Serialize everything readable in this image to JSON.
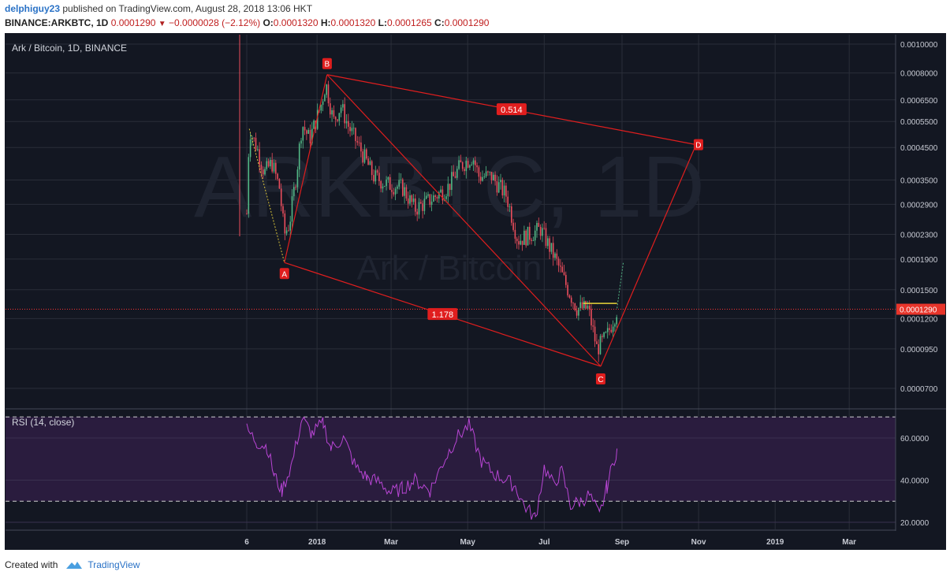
{
  "header": {
    "author": "delphiguy23",
    "published_text": "published on TradingView.com, August 28, 2018 13:06 HKT",
    "symbol": "BINANCE:ARKBTC, 1D",
    "last_price": "0.0001290",
    "change_arrow": "▼",
    "change": "−0.0000028 (−2.12%)",
    "open_label": "O:",
    "open": "0.0001320",
    "high_label": "H:",
    "high": "0.0001320",
    "low_label": "L:",
    "low": "0.0001265",
    "close_label": "C:",
    "close": "0.0001290"
  },
  "footer": {
    "created_with": "Created with",
    "brand": "TradingView"
  },
  "colors": {
    "background": "#131722",
    "pattern_red": "#e01e1e",
    "candle_up": "#53b987",
    "candle_down": "#eb4d5c",
    "rsi_line": "#b845d4",
    "rsi_band": "#2a1c3e",
    "price_line": "#ff3333"
  },
  "chart_data": [
    {
      "type": "candlestick",
      "title": "Ark / Bitcoin, 1D, BINANCE",
      "watermark": "ARKBTC, 1D",
      "watermark_sub": "Ark / Bitcoin",
      "scale": "log",
      "y_ticks": [
        "0.0010000",
        "0.0008000",
        "0.0006500",
        "0.0005500",
        "0.0004500",
        "0.0003500",
        "0.0002900",
        "0.0002300",
        "0.0001900",
        "0.0001500",
        "0.0001200",
        "0.0000950",
        "0.0000700"
      ],
      "x_ticks": [
        "6",
        "2018",
        "Mar",
        "May",
        "Jul",
        "Sep",
        "Nov",
        "2019",
        "Mar"
      ],
      "current_price_label": "0.0001290",
      "price_path": [
        {
          "date": "2017-11-06",
          "value": 0.00027
        },
        {
          "date": "2017-11-08",
          "value": 0.00052
        },
        {
          "date": "2017-11-14",
          "value": 0.00045
        },
        {
          "date": "2017-11-20",
          "value": 0.00037
        },
        {
          "date": "2017-11-26",
          "value": 0.0004
        },
        {
          "date": "2017-12-02",
          "value": 0.00033
        },
        {
          "date": "2017-12-06",
          "value": 0.00023
        },
        {
          "date": "2017-12-10",
          "value": 0.00025
        },
        {
          "date": "2017-12-16",
          "value": 0.00038
        },
        {
          "date": "2017-12-20",
          "value": 0.00054
        },
        {
          "date": "2017-12-26",
          "value": 0.00048
        },
        {
          "date": "2018-01-04",
          "value": 0.00062
        },
        {
          "date": "2018-01-08",
          "value": 0.00074
        },
        {
          "date": "2018-01-14",
          "value": 0.00055
        },
        {
          "date": "2018-01-20",
          "value": 0.00062
        },
        {
          "date": "2018-01-26",
          "value": 0.00053
        },
        {
          "date": "2018-02-05",
          "value": 0.00044
        },
        {
          "date": "2018-02-15",
          "value": 0.00036
        },
        {
          "date": "2018-02-25",
          "value": 0.00034
        },
        {
          "date": "2018-03-10",
          "value": 0.00033
        },
        {
          "date": "2018-03-20",
          "value": 0.00028
        },
        {
          "date": "2018-04-01",
          "value": 0.0003
        },
        {
          "date": "2018-04-15",
          "value": 0.00033
        },
        {
          "date": "2018-04-25",
          "value": 0.00039
        },
        {
          "date": "2018-05-05",
          "value": 0.00042
        },
        {
          "date": "2018-05-10",
          "value": 0.00036
        },
        {
          "date": "2018-05-20",
          "value": 0.00036
        },
        {
          "date": "2018-06-01",
          "value": 0.00031
        },
        {
          "date": "2018-06-10",
          "value": 0.00022
        },
        {
          "date": "2018-06-20",
          "value": 0.00023
        },
        {
          "date": "2018-06-28",
          "value": 0.00024
        },
        {
          "date": "2018-07-10",
          "value": 0.00019
        },
        {
          "date": "2018-07-20",
          "value": 0.00015
        },
        {
          "date": "2018-07-27",
          "value": 0.00013
        },
        {
          "date": "2018-08-05",
          "value": 0.00013
        },
        {
          "date": "2018-08-12",
          "value": 9.5e-05
        },
        {
          "date": "2018-08-20",
          "value": 0.000105
        },
        {
          "date": "2018-08-28",
          "value": 0.000129
        }
      ],
      "pattern": {
        "points": [
          {
            "label": "A",
            "date": "2017-12-06",
            "value": 0.000185
          },
          {
            "label": "B",
            "date": "2018-01-09",
            "value": 0.00079
          },
          {
            "label": "C",
            "date": "2018-08-15",
            "value": 8.3e-05
          },
          {
            "label": "D",
            "date": "2018-10-30",
            "value": 0.00046
          }
        ],
        "ratios": [
          {
            "label": "0.514",
            "between": "B-D"
          },
          {
            "label": "1.178",
            "between": "A-C"
          }
        ]
      },
      "projection": [
        {
          "date": "2018-08-28",
          "value": 0.00013
        },
        {
          "date": "2018-09-02",
          "value": 0.000185
        }
      ],
      "resistance_line": {
        "from": "2018-08-01",
        "to": "2018-08-28",
        "value": 0.000135
      }
    },
    {
      "type": "line",
      "title": "RSI (14, close)",
      "y_ticks": [
        "60.0000",
        "40.0000",
        "20.0000"
      ],
      "bands": [
        70,
        30
      ],
      "series": [
        {
          "points": [
            {
              "date": "2017-11-06",
              "value": 64
            },
            {
              "date": "2017-11-14",
              "value": 58
            },
            {
              "date": "2017-11-22",
              "value": 56
            },
            {
              "date": "2017-11-28",
              "value": 42
            },
            {
              "date": "2017-12-04",
              "value": 35
            },
            {
              "date": "2017-12-12",
              "value": 48
            },
            {
              "date": "2017-12-20",
              "value": 69
            },
            {
              "date": "2017-12-28",
              "value": 62
            },
            {
              "date": "2018-01-06",
              "value": 67
            },
            {
              "date": "2018-01-12",
              "value": 55
            },
            {
              "date": "2018-01-22",
              "value": 60
            },
            {
              "date": "2018-02-01",
              "value": 46
            },
            {
              "date": "2018-02-10",
              "value": 41
            },
            {
              "date": "2018-02-20",
              "value": 39
            },
            {
              "date": "2018-03-01",
              "value": 34
            },
            {
              "date": "2018-03-10",
              "value": 36
            },
            {
              "date": "2018-03-20",
              "value": 40
            },
            {
              "date": "2018-04-01",
              "value": 35
            },
            {
              "date": "2018-04-12",
              "value": 49
            },
            {
              "date": "2018-04-22",
              "value": 60
            },
            {
              "date": "2018-05-02",
              "value": 66
            },
            {
              "date": "2018-05-12",
              "value": 49
            },
            {
              "date": "2018-05-22",
              "value": 43
            },
            {
              "date": "2018-06-01",
              "value": 40
            },
            {
              "date": "2018-06-08",
              "value": 37
            },
            {
              "date": "2018-06-15",
              "value": 28
            },
            {
              "date": "2018-06-24",
              "value": 22
            },
            {
              "date": "2018-07-01",
              "value": 46
            },
            {
              "date": "2018-07-08",
              "value": 38
            },
            {
              "date": "2018-07-15",
              "value": 44
            },
            {
              "date": "2018-07-22",
              "value": 28
            },
            {
              "date": "2018-07-30",
              "value": 30
            },
            {
              "date": "2018-08-06",
              "value": 33
            },
            {
              "date": "2018-08-14",
              "value": 23
            },
            {
              "date": "2018-08-20",
              "value": 37
            },
            {
              "date": "2018-08-28",
              "value": 55
            }
          ]
        }
      ]
    }
  ]
}
